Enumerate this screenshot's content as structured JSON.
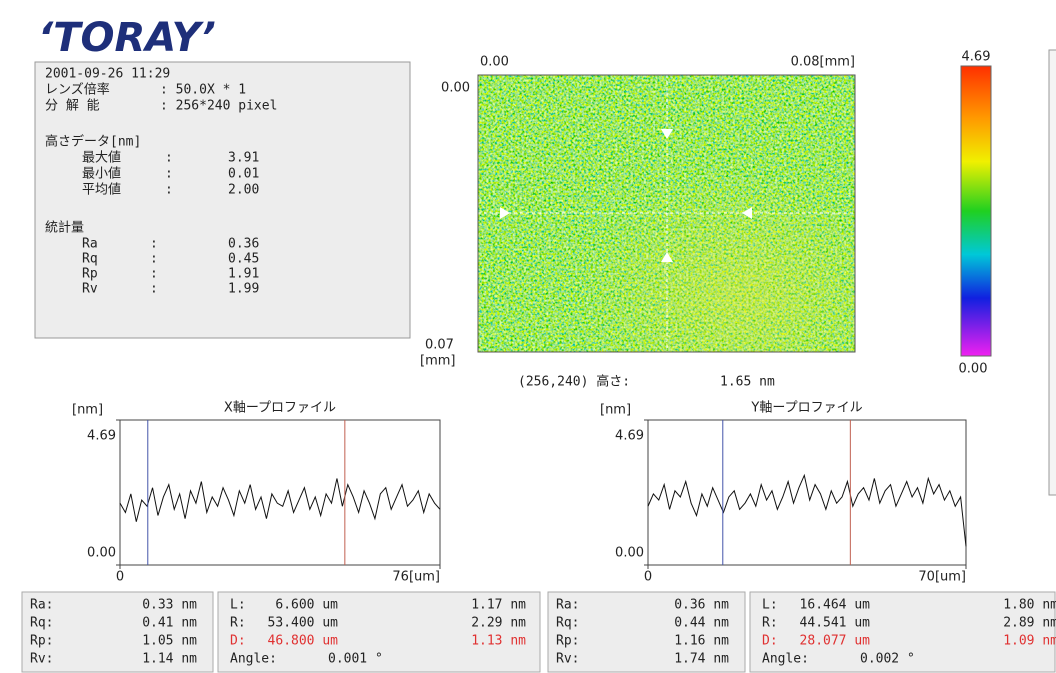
{
  "logo": "‘TORAY’",
  "info": {
    "date": "2001-09-26 11:29",
    "settings": [
      [
        "レンズ倍率",
        ": 50.0X * 1"
      ],
      [
        "分 解 能",
        ": 256*240 pixel"
      ]
    ],
    "height_title": "高さデータ[nm]",
    "height": [
      [
        "最大値",
        ":",
        "3.91"
      ],
      [
        "最小値",
        ":",
        "0.01"
      ],
      [
        "平均値",
        ":",
        "2.00"
      ]
    ],
    "stats_title": "統計量",
    "stats": [
      [
        "Ra",
        ":",
        "0.36"
      ],
      [
        "Rq",
        ":",
        "0.45"
      ],
      [
        "Rp",
        ":",
        "1.91"
      ],
      [
        "Rv",
        ":",
        "1.99"
      ]
    ]
  },
  "image": {
    "x_start": "0.00",
    "x_end": "0.08[mm]",
    "y_start": "0.00",
    "y_end": "0.07",
    "y_unit": "[mm]",
    "cursor_label": "(256,240) 高さ:",
    "cursor_value": "1.65 nm"
  },
  "colorbar": {
    "max": "4.69",
    "min": "0.00"
  },
  "profiles": [
    {
      "title": "X軸ープロファイル",
      "y_unit": "[nm]",
      "ylim": [
        0,
        4.69
      ],
      "yticks": [
        {
          "value": 0,
          "label": "0.00"
        },
        4.69
      ],
      "xlim": [
        0,
        76
      ],
      "xticks": [
        0,
        {
          "value": 76,
          "label": "76[um]"
        }
      ],
      "values": [
        2.0,
        1.7,
        2.3,
        1.4,
        2.1,
        1.9,
        2.5,
        1.6,
        2.2,
        2.6,
        1.8,
        2.3,
        1.5,
        2.4,
        2.0,
        2.7,
        1.7,
        2.2,
        1.9,
        2.5,
        2.1,
        1.6,
        2.4,
        2.0,
        2.6,
        1.8,
        2.2,
        1.5,
        2.3,
        2.0,
        1.9,
        2.4,
        1.7,
        2.1,
        2.5,
        1.8,
        2.2,
        1.6,
        2.3,
        2.0,
        2.8,
        1.9,
        2.6,
        2.2,
        1.7,
        2.4,
        2.0,
        1.5,
        2.3,
        2.5,
        1.8,
        2.2,
        2.6,
        1.9,
        2.1,
        2.4,
        1.7,
        2.3,
        2.0,
        1.8
      ]
    },
    {
      "title": "Y軸ープロファイル",
      "y_unit": "[nm]",
      "ylim": [
        0,
        4.69
      ],
      "yticks": [
        {
          "value": 0,
          "label": "0.00"
        },
        4.69
      ],
      "xlim": [
        0,
        70
      ],
      "xticks": [
        0,
        {
          "value": 70,
          "label": "70[um]"
        }
      ],
      "values": [
        1.9,
        2.3,
        2.1,
        2.6,
        1.8,
        2.4,
        2.2,
        2.7,
        2.0,
        1.6,
        2.3,
        1.9,
        2.5,
        2.1,
        1.7,
        2.2,
        2.4,
        1.8,
        2.0,
        2.3,
        1.9,
        2.6,
        2.1,
        2.4,
        1.8,
        2.2,
        2.7,
        2.0,
        2.5,
        2.9,
        2.1,
        2.6,
        2.3,
        1.8,
        2.4,
        2.0,
        2.2,
        2.7,
        1.9,
        2.3,
        2.5,
        2.1,
        2.8,
        2.0,
        2.4,
        2.6,
        1.9,
        2.3,
        2.7,
        2.2,
        2.5,
        2.0,
        2.8,
        2.3,
        2.6,
        2.1,
        2.4,
        1.9,
        2.2,
        0.6
      ]
    }
  ],
  "panels": [
    {
      "stats": [
        [
          "Ra:",
          "0.33 nm"
        ],
        [
          "Rq:",
          "0.41 nm"
        ],
        [
          "Rp:",
          "1.05 nm"
        ],
        [
          "Rv:",
          "1.14 nm"
        ]
      ],
      "L": {
        "name": "L:",
        "pos": {
          "value": 6.6,
          "label": "6.600 um"
        },
        "height": "1.17 nm"
      },
      "R": {
        "name": "R:",
        "pos": {
          "value": 53.4,
          "label": "53.400 um"
        },
        "height": "2.29 nm"
      },
      "D": {
        "name": "D:",
        "pos": "46.800 um",
        "height": "1.13 nm"
      },
      "angle": [
        "Angle:",
        "0.001 °"
      ]
    },
    {
      "stats": [
        [
          "Ra:",
          "0.36 nm"
        ],
        [
          "Rq:",
          "0.44 nm"
        ],
        [
          "Rp:",
          "1.16 nm"
        ],
        [
          "Rv:",
          "1.74 nm"
        ]
      ],
      "L": {
        "name": "L:",
        "pos": {
          "value": 16.464,
          "label": "16.464 um"
        },
        "height": "1.80 nm"
      },
      "R": {
        "name": "R:",
        "pos": {
          "value": 44.541,
          "label": "44.541 um"
        },
        "height": "2.89 nm"
      },
      "D": {
        "name": "D:",
        "pos": "28.077 um",
        "height": "1.09 nm"
      },
      "angle": [
        "Angle:",
        "0.002 °"
      ]
    }
  ]
}
